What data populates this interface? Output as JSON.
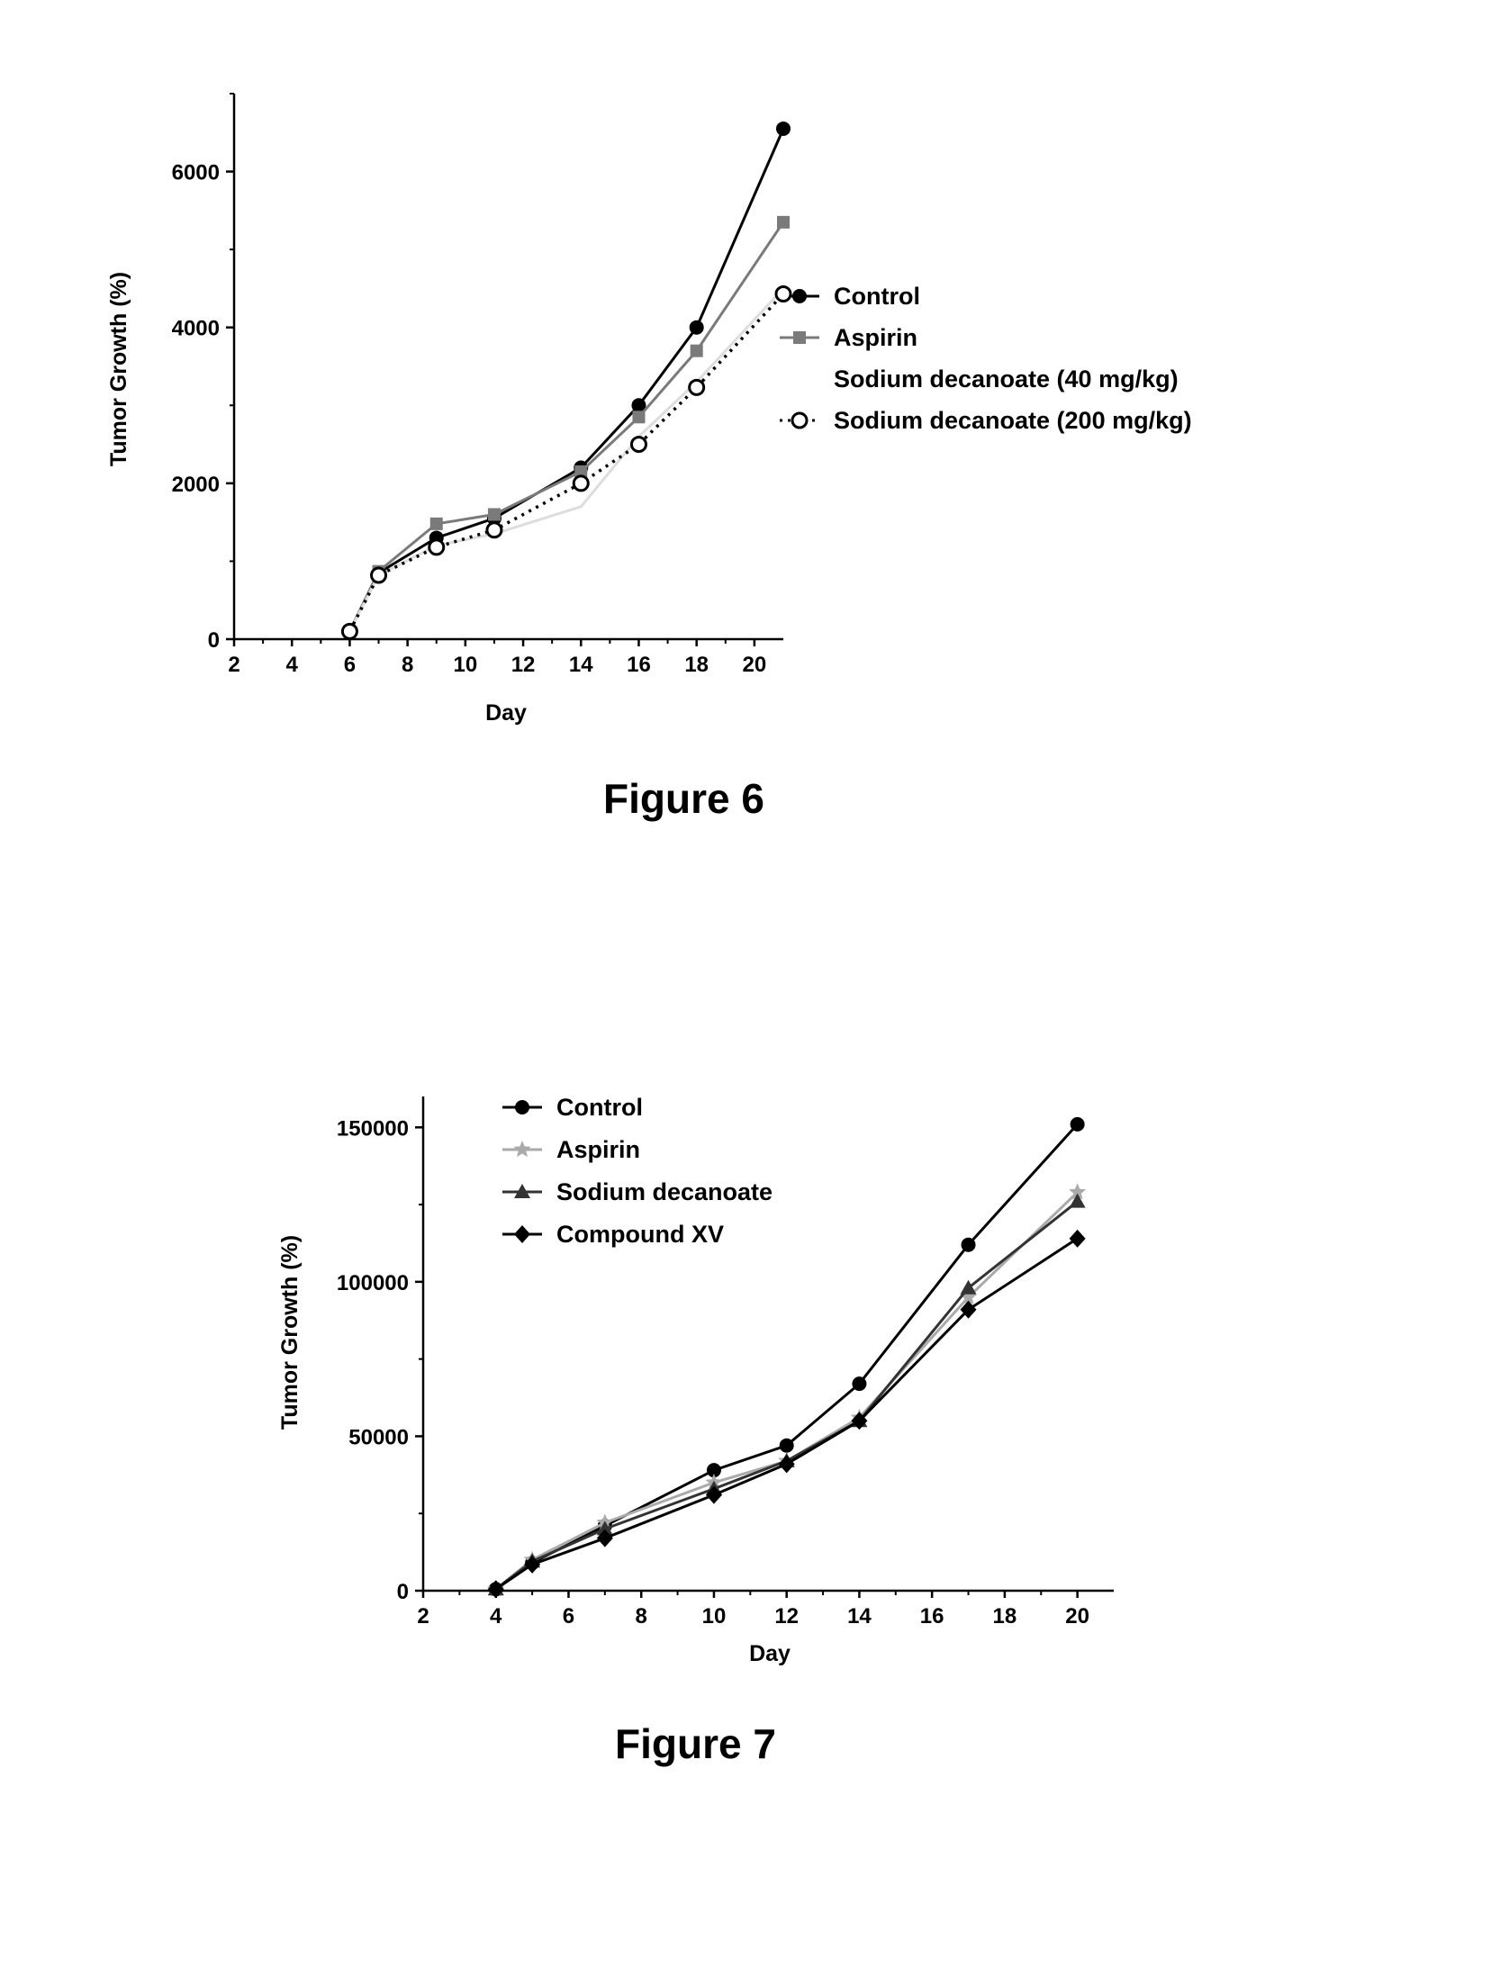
{
  "chart_data": [
    {
      "type": "line",
      "caption": "Figure 6",
      "xlabel": "Day",
      "ylabel": "Tumor Growth (%)",
      "xlim": [
        2,
        21
      ],
      "ylim": [
        0,
        7000
      ],
      "xticks": [
        "2",
        "4",
        "6",
        "8",
        "10",
        "12",
        "14",
        "16",
        "18",
        "20"
      ],
      "yticks": [
        "0",
        "2000",
        "4000",
        "6000"
      ],
      "legend_position": "right",
      "series": [
        {
          "name": "Control",
          "color": "#000000",
          "marker": "filled-circle",
          "dash": "solid",
          "x": [
            6,
            7,
            9,
            11,
            14,
            16,
            18,
            21
          ],
          "y": [
            100,
            850,
            1300,
            1550,
            2200,
            3000,
            4000,
            6550
          ]
        },
        {
          "name": "Aspirin",
          "color": "#7a7a7a",
          "marker": "square",
          "dash": "solid",
          "x": [
            6,
            7,
            9,
            11,
            14,
            16,
            18,
            21
          ],
          "y": [
            100,
            870,
            1480,
            1600,
            2150,
            2850,
            3700,
            5350
          ]
        },
        {
          "name": "Sodium decanoate (40 mg/kg)",
          "color": "#dddddd",
          "marker": "none",
          "dash": "solid",
          "x": [
            6,
            7,
            9,
            11,
            14,
            16,
            18,
            21
          ],
          "y": [
            100,
            820,
            1200,
            1350,
            1700,
            2600,
            3300,
            4500
          ]
        },
        {
          "name": "Sodium decanoate (200 mg/kg)",
          "color": "#000000",
          "marker": "open-circle",
          "dash": "dotted",
          "x": [
            6,
            7,
            9,
            11,
            14,
            16,
            18,
            21
          ],
          "y": [
            100,
            820,
            1180,
            1400,
            2000,
            2500,
            3230,
            4430
          ]
        }
      ]
    },
    {
      "type": "line",
      "caption": "Figure 7",
      "xlabel": "Day",
      "ylabel": "Tumor Growth (%)",
      "xlim": [
        2,
        21
      ],
      "ylim": [
        0,
        160000
      ],
      "xticks": [
        "2",
        "4",
        "6",
        "8",
        "10",
        "12",
        "14",
        "16",
        "18",
        "20"
      ],
      "yticks": [
        "0",
        "50000",
        "100000",
        "150000"
      ],
      "legend_position": "top-left",
      "series": [
        {
          "name": "Control",
          "color": "#000000",
          "marker": "filled-circle",
          "dash": "solid",
          "x": [
            4,
            5,
            7,
            10,
            12,
            14,
            17,
            20
          ],
          "y": [
            500,
            9000,
            21000,
            39000,
            47000,
            67000,
            112000,
            151000
          ]
        },
        {
          "name": "Aspirin",
          "color": "#aaaaaa",
          "marker": "star",
          "dash": "solid",
          "x": [
            4,
            5,
            7,
            10,
            12,
            14,
            17,
            20
          ],
          "y": [
            500,
            10000,
            22000,
            35000,
            42000,
            56000,
            95000,
            129000
          ]
        },
        {
          "name": "Sodium decanoate",
          "color": "#333333",
          "marker": "triangle",
          "dash": "solid",
          "x": [
            4,
            5,
            7,
            10,
            12,
            14,
            17,
            20
          ],
          "y": [
            500,
            9500,
            20000,
            33000,
            42000,
            55000,
            98000,
            126000
          ]
        },
        {
          "name": "Compound XV",
          "color": "#000000",
          "marker": "diamond",
          "dash": "solid",
          "x": [
            4,
            5,
            7,
            10,
            12,
            14,
            17,
            20
          ],
          "y": [
            500,
            8500,
            17000,
            31000,
            41000,
            55000,
            91000,
            114000
          ]
        }
      ]
    }
  ]
}
